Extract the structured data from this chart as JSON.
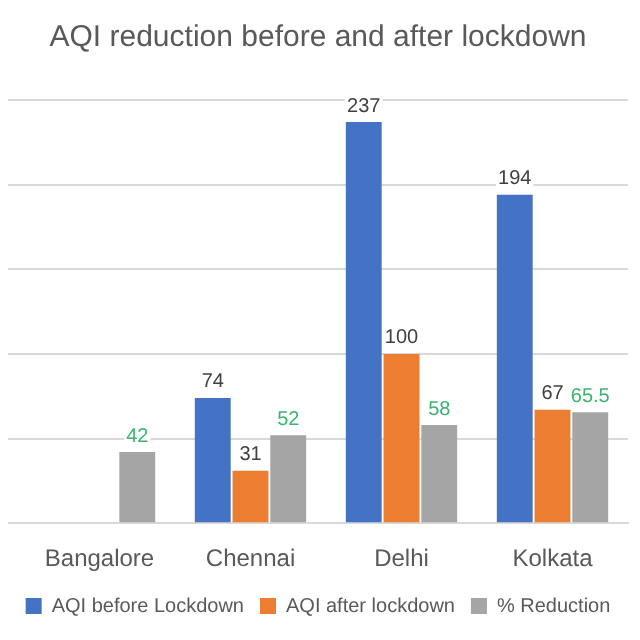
{
  "chart_data": {
    "type": "bar",
    "title": "AQI reduction before and after lockdown",
    "categories": [
      "Bangalore",
      "Chennai",
      "Delhi",
      "Kolkata"
    ],
    "series": [
      {
        "name": "AQI before Lockdown",
        "color": "#4472c4",
        "values": [
          null,
          74,
          237,
          194
        ],
        "value_labels": [
          null,
          "74",
          "237",
          "194"
        ]
      },
      {
        "name": "AQI after lockdown",
        "color": "#ed7d31",
        "values": [
          null,
          31,
          100,
          67
        ],
        "value_labels": [
          null,
          "31",
          "100",
          "67"
        ]
      },
      {
        "name": "% Reduction",
        "color": "#a5a5a5",
        "values": [
          42,
          52,
          58,
          65.5
        ],
        "value_labels": [
          "42",
          "52",
          "58",
          "65.5"
        ]
      }
    ],
    "ylim": [
      0,
      250
    ],
    "yticks": [
      0,
      50,
      100,
      150,
      200,
      250
    ],
    "grid": "y",
    "tick_labels": "x",
    "legend": "bottom"
  }
}
